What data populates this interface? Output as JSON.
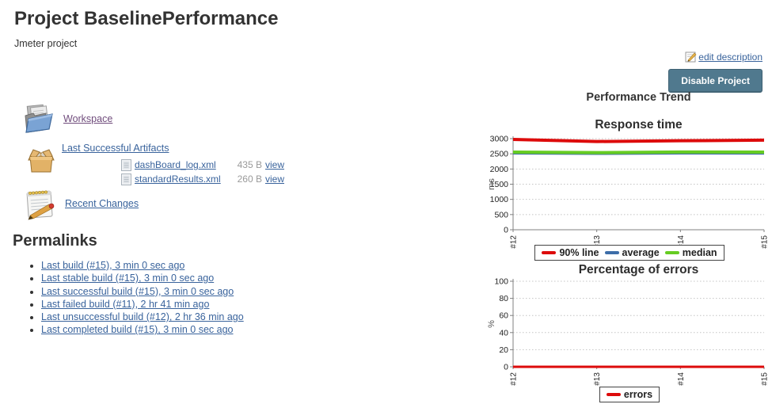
{
  "header": {
    "title": "Project BaselinePerformance",
    "description": "Jmeter project",
    "edit_description_label": "edit description",
    "disable_button_label": "Disable Project"
  },
  "sidebar": {
    "workspace_label": "Workspace",
    "artifacts_label": "Last Successful Artifacts",
    "artifacts": [
      {
        "name": "dashBoard_log.xml",
        "size": "435 B",
        "view_label": "view"
      },
      {
        "name": "standardResults.xml",
        "size": "260 B",
        "view_label": "view"
      }
    ],
    "changes_label": "Recent Changes"
  },
  "permalinks": {
    "heading": "Permalinks",
    "items": [
      "Last build (#15), 3 min 0 sec ago",
      "Last stable build (#15), 3 min 0 sec ago",
      "Last successful build (#15), 3 min 0 sec ago",
      "Last failed build (#11), 2 hr 41 min ago",
      "Last unsuccessful build (#12), 2 hr 36 min ago",
      "Last completed build (#15), 3 min 0 sec ago"
    ]
  },
  "trend": {
    "heading": "Performance Trend"
  },
  "colors": {
    "accent_button": "#50798e",
    "link": "#39639c",
    "visited_link": "#704c7c",
    "series_red": "#dd0b0b",
    "series_blue": "#3d6da8",
    "series_green": "#66cc22"
  },
  "chart_data": [
    {
      "type": "line",
      "title": "Response time",
      "ylabel": "ms",
      "xlabel": "",
      "categories": [
        "#12",
        "#13",
        "#14",
        "#15"
      ],
      "series": [
        {
          "name": "90% line",
          "color": "#dd0b0b",
          "width": 4,
          "values": [
            2975,
            2905,
            2930,
            2950
          ]
        },
        {
          "name": "average",
          "color": "#3d6da8",
          "width": 2,
          "values": [
            2505,
            2490,
            2505,
            2500
          ]
        },
        {
          "name": "median",
          "color": "#66cc22",
          "width": 4,
          "values": [
            2555,
            2540,
            2560,
            2555
          ]
        }
      ],
      "ylim": [
        0,
        3000
      ],
      "ytick": 500,
      "grid": true,
      "legend_position": "bottom"
    },
    {
      "type": "line",
      "title": "Percentage of errors",
      "ylabel": "%",
      "xlabel": "",
      "categories": [
        "#12",
        "#13",
        "#14",
        "#15"
      ],
      "series": [
        {
          "name": "errors",
          "color": "#dd0b0b",
          "width": 3,
          "values": [
            0,
            0,
            0,
            0
          ]
        }
      ],
      "ylim": [
        0,
        100
      ],
      "ytick": 20,
      "grid": true,
      "legend_position": "bottom"
    }
  ]
}
